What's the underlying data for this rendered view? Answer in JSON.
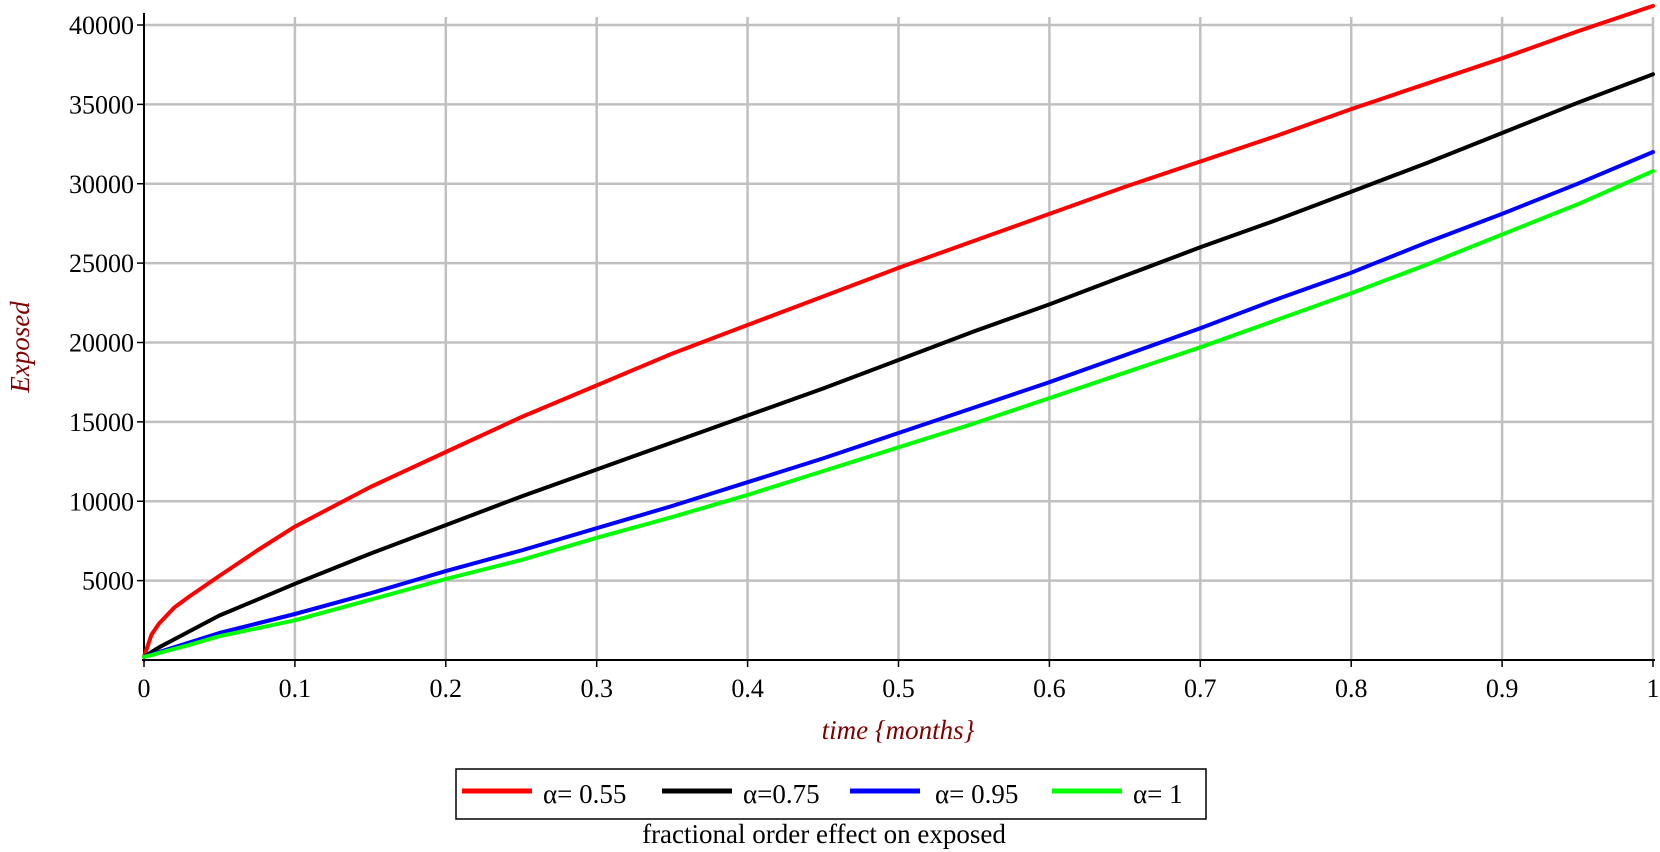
{
  "chart_data": {
    "type": "line",
    "title": "",
    "xlabel": "time {months}",
    "ylabel": "Exposed",
    "caption": "fractional order effect on exposed",
    "xlim": [
      0,
      1
    ],
    "ylim": [
      0,
      40000
    ],
    "x_ticks": [
      0,
      0.1,
      0.2,
      0.3,
      0.4,
      0.5,
      0.6,
      0.7,
      0.8,
      0.9,
      1
    ],
    "x_tick_labels": [
      "0",
      "0.1",
      "0.2",
      "0.3",
      "0.4",
      "0.5",
      "0.6",
      "0.7",
      "0.8",
      "0.9",
      "1"
    ],
    "y_ticks": [
      5000,
      10000,
      15000,
      20000,
      25000,
      30000,
      35000,
      40000
    ],
    "y_tick_labels": [
      "5000",
      "10000",
      "15000",
      "20000",
      "25000",
      "30000",
      "35000",
      "40000"
    ],
    "grid": true,
    "legend_position": "bottom",
    "x": [
      0,
      0.005,
      0.01,
      0.02,
      0.03,
      0.05,
      0.075,
      0.1,
      0.15,
      0.2,
      0.25,
      0.3,
      0.35,
      0.4,
      0.45,
      0.5,
      0.55,
      0.6,
      0.65,
      0.7,
      0.75,
      0.8,
      0.85,
      0.9,
      0.95,
      1
    ],
    "series": [
      {
        "name": "α= 0.55",
        "color": "#ff0000",
        "values": [
          200,
          1600,
          2300,
          3300,
          4000,
          5300,
          6900,
          8400,
          10900,
          13100,
          15300,
          17300,
          19300,
          21100,
          22900,
          24700,
          26400,
          28100,
          29800,
          31400,
          33000,
          34700,
          36300,
          37900,
          39600,
          41200
        ]
      },
      {
        "name": "α=0.75",
        "color": "#000000",
        "values": [
          200,
          500,
          800,
          1300,
          1800,
          2800,
          3800,
          4800,
          6700,
          8500,
          10300,
          12000,
          13700,
          15400,
          17100,
          18900,
          20700,
          22400,
          24200,
          26000,
          27700,
          29500,
          31300,
          33200,
          35100,
          36900
        ]
      },
      {
        "name": "α= 0.95",
        "color": "#0000ff",
        "values": [
          200,
          350,
          500,
          800,
          1100,
          1700,
          2300,
          2900,
          4200,
          5600,
          6900,
          8300,
          9700,
          11200,
          12700,
          14300,
          15900,
          17500,
          19200,
          20900,
          22700,
          24400,
          26300,
          28100,
          30000,
          32000
        ]
      },
      {
        "name": "α= 1",
        "color": "#00ff00",
        "values": [
          200,
          300,
          450,
          700,
          950,
          1500,
          2000,
          2500,
          3800,
          5100,
          6300,
          7700,
          9000,
          10400,
          11900,
          13400,
          14900,
          16500,
          18100,
          19700,
          21400,
          23100,
          24900,
          26800,
          28700,
          30800
        ]
      }
    ]
  },
  "colors": {
    "axis_title": "#800000",
    "grid": "#c0c0c0",
    "axis": "#000000"
  }
}
